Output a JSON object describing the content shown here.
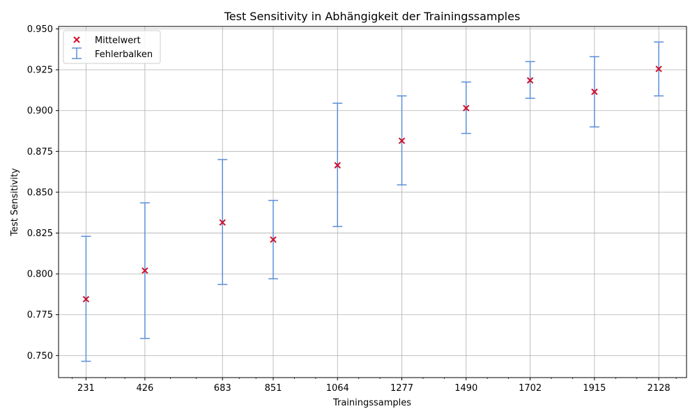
{
  "chart_data": {
    "type": "scatter",
    "title": "Test Sensitivity in Abhängigkeit der Trainingssamples",
    "xlabel": "Trainingssamples",
    "ylabel": "Test Sensitivity",
    "x_ticks": [
      "231",
      "426",
      "683",
      "851",
      "1064",
      "1277",
      "1490",
      "1702",
      "1915",
      "2128"
    ],
    "x": [
      231,
      426,
      683,
      851,
      1064,
      1277,
      1490,
      1702,
      1915,
      2128
    ],
    "xlim": [
      140,
      2220
    ],
    "ylim": [
      0.7365,
      0.9515
    ],
    "y_ticks": [
      "0.750",
      "0.775",
      "0.800",
      "0.825",
      "0.850",
      "0.875",
      "0.900",
      "0.925",
      "0.950"
    ],
    "grid": true,
    "legend_position": "top-left",
    "series": [
      {
        "name": "Mittelwert",
        "marker": "x",
        "color": "#d0112b",
        "values": [
          0.7845,
          0.802,
          0.8315,
          0.821,
          0.8665,
          0.8815,
          0.9015,
          0.9185,
          0.9115,
          0.9255
        ]
      },
      {
        "name": "Fehlerbalken",
        "type": "errorbar",
        "color": "#5b8fd9",
        "lower": [
          0.7465,
          0.7605,
          0.7935,
          0.797,
          0.829,
          0.8545,
          0.886,
          0.9075,
          0.89,
          0.909
        ],
        "upper": [
          0.823,
          0.8435,
          0.87,
          0.845,
          0.9045,
          0.909,
          0.9175,
          0.93,
          0.933,
          0.942
        ]
      }
    ]
  }
}
